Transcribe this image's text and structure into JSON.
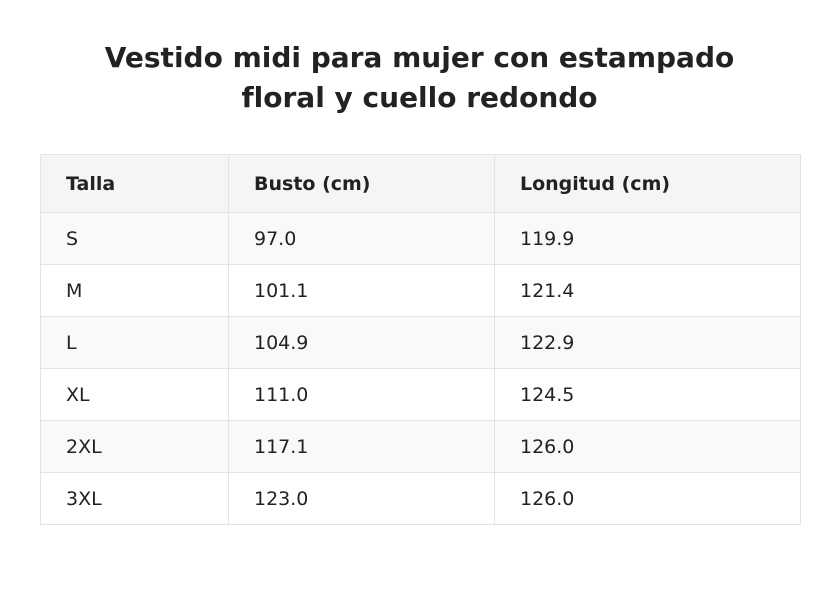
{
  "title": "Vestido midi para mujer con estampado floral y cuello redondo",
  "table": {
    "headers": [
      "Talla",
      "Busto (cm)",
      "Longitud (cm)"
    ],
    "rows": [
      [
        "S",
        "97.0",
        "119.9"
      ],
      [
        "M",
        "101.1",
        "121.4"
      ],
      [
        "L",
        "104.9",
        "122.9"
      ],
      [
        "XL",
        "111.0",
        "124.5"
      ],
      [
        "2XL",
        "117.1",
        "126.0"
      ],
      [
        "3XL",
        "123.0",
        "126.0"
      ]
    ]
  }
}
